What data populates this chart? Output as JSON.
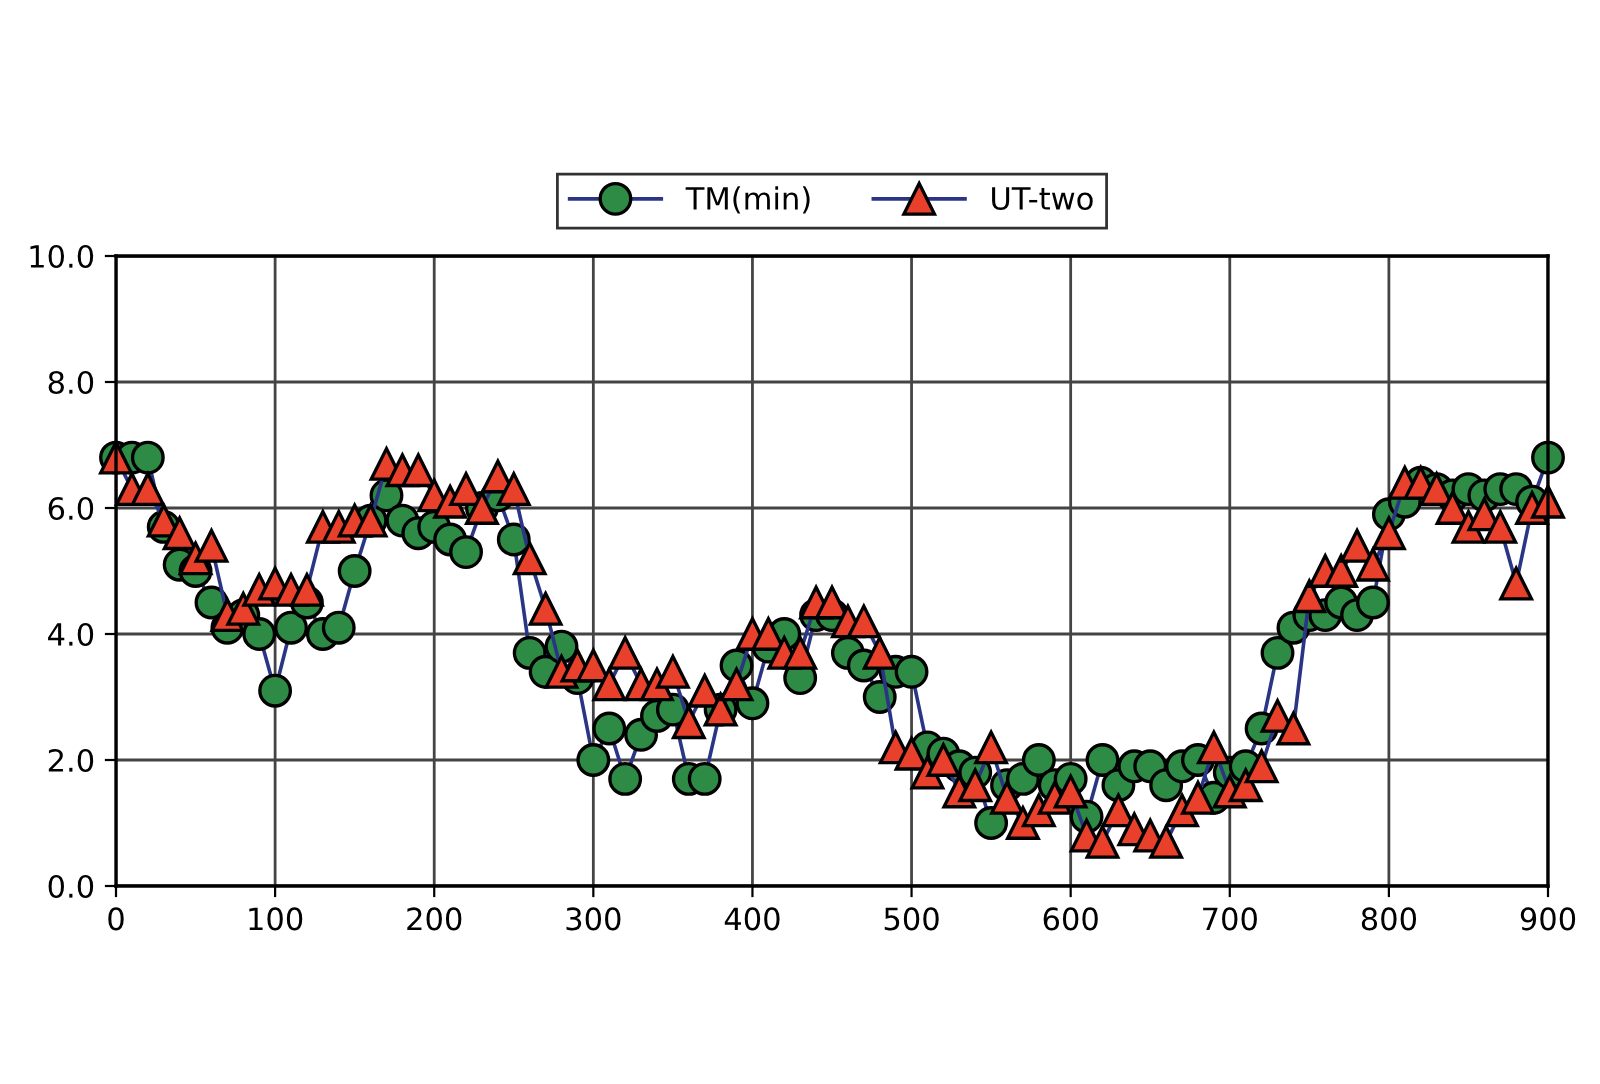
{
  "chart_data": {
    "type": "line",
    "x": [
      0,
      10,
      20,
      30,
      40,
      50,
      60,
      70,
      80,
      90,
      100,
      110,
      120,
      130,
      140,
      150,
      160,
      170,
      180,
      190,
      200,
      210,
      220,
      230,
      240,
      250,
      260,
      270,
      280,
      290,
      300,
      310,
      320,
      330,
      340,
      350,
      360,
      370,
      380,
      390,
      400,
      410,
      420,
      430,
      440,
      450,
      460,
      470,
      480,
      490,
      500,
      510,
      520,
      530,
      540,
      550,
      560,
      570,
      580,
      590,
      600,
      610,
      620,
      630,
      640,
      650,
      660,
      670,
      680,
      690,
      700,
      710,
      720,
      730,
      740,
      750,
      760,
      770,
      780,
      790,
      800,
      810,
      820,
      830,
      840,
      850,
      860,
      870,
      880,
      890,
      900
    ],
    "series": [
      {
        "name": "TM(min)",
        "color": "#2e8b45",
        "marker": "circle",
        "values": [
          6.8,
          6.8,
          6.8,
          5.7,
          5.1,
          5.0,
          4.5,
          4.1,
          4.3,
          4.0,
          3.1,
          4.1,
          4.5,
          4.0,
          4.1,
          5.0,
          5.8,
          6.2,
          5.8,
          5.6,
          5.7,
          5.5,
          5.3,
          6.0,
          6.2,
          5.5,
          3.7,
          3.4,
          3.8,
          3.3,
          2.0,
          2.5,
          1.7,
          2.4,
          2.7,
          2.8,
          1.7,
          1.7,
          2.8,
          3.5,
          2.9,
          3.8,
          4.0,
          3.3,
          4.3,
          4.3,
          3.7,
          3.5,
          3.0,
          3.4,
          3.4,
          2.2,
          2.1,
          1.9,
          1.8,
          1.0,
          1.6,
          1.7,
          2.0,
          1.6,
          1.7,
          1.1,
          2.0,
          1.6,
          1.9,
          1.9,
          1.6,
          1.9,
          2.0,
          1.4,
          1.8,
          1.9,
          2.5,
          3.7,
          4.1,
          4.3,
          4.3,
          4.5,
          4.3,
          4.5,
          5.9,
          6.1,
          6.4,
          6.3,
          6.2,
          6.3,
          6.2,
          6.3,
          6.3,
          6.1,
          6.8
        ]
      },
      {
        "name": "UT-two",
        "color": "#e8402a",
        "marker": "triangle",
        "values": [
          6.8,
          6.3,
          6.3,
          5.8,
          5.6,
          5.2,
          5.4,
          4.3,
          4.4,
          4.7,
          4.8,
          4.7,
          4.7,
          5.7,
          5.7,
          5.8,
          5.8,
          6.7,
          6.6,
          6.6,
          6.2,
          6.1,
          6.3,
          6.0,
          6.5,
          6.3,
          5.2,
          4.4,
          3.4,
          3.5,
          3.5,
          3.2,
          3.7,
          3.2,
          3.2,
          3.4,
          2.6,
          3.1,
          2.8,
          3.2,
          4.0,
          4.0,
          3.7,
          3.7,
          4.5,
          4.5,
          4.2,
          4.2,
          3.7,
          2.2,
          2.1,
          1.8,
          2.0,
          1.5,
          1.6,
          2.2,
          1.4,
          1.0,
          1.2,
          1.4,
          1.5,
          0.8,
          0.7,
          1.2,
          0.9,
          0.8,
          0.7,
          1.2,
          1.4,
          2.2,
          1.5,
          1.6,
          1.9,
          2.7,
          2.5,
          4.6,
          5.0,
          5.0,
          5.4,
          5.1,
          5.6,
          6.4,
          6.4,
          6.3,
          6.0,
          5.7,
          5.9,
          5.7,
          4.8,
          6.0,
          6.1
        ]
      }
    ],
    "xlim": [
      0,
      900
    ],
    "xticks": [
      0,
      100,
      200,
      300,
      400,
      500,
      600,
      700,
      800,
      900
    ],
    "ylim": [
      0,
      10
    ],
    "yticks": [
      {
        "value": 0,
        "label": "0.0"
      },
      {
        "value": 2,
        "label": "2.0"
      },
      {
        "value": 4,
        "label": "4.0"
      },
      {
        "value": 6,
        "label": "6.0"
      },
      {
        "value": 8,
        "label": "8.0"
      },
      {
        "value": 10,
        "label": "10.0"
      }
    ],
    "grid": true,
    "legend": "top",
    "line_style": "solid"
  }
}
